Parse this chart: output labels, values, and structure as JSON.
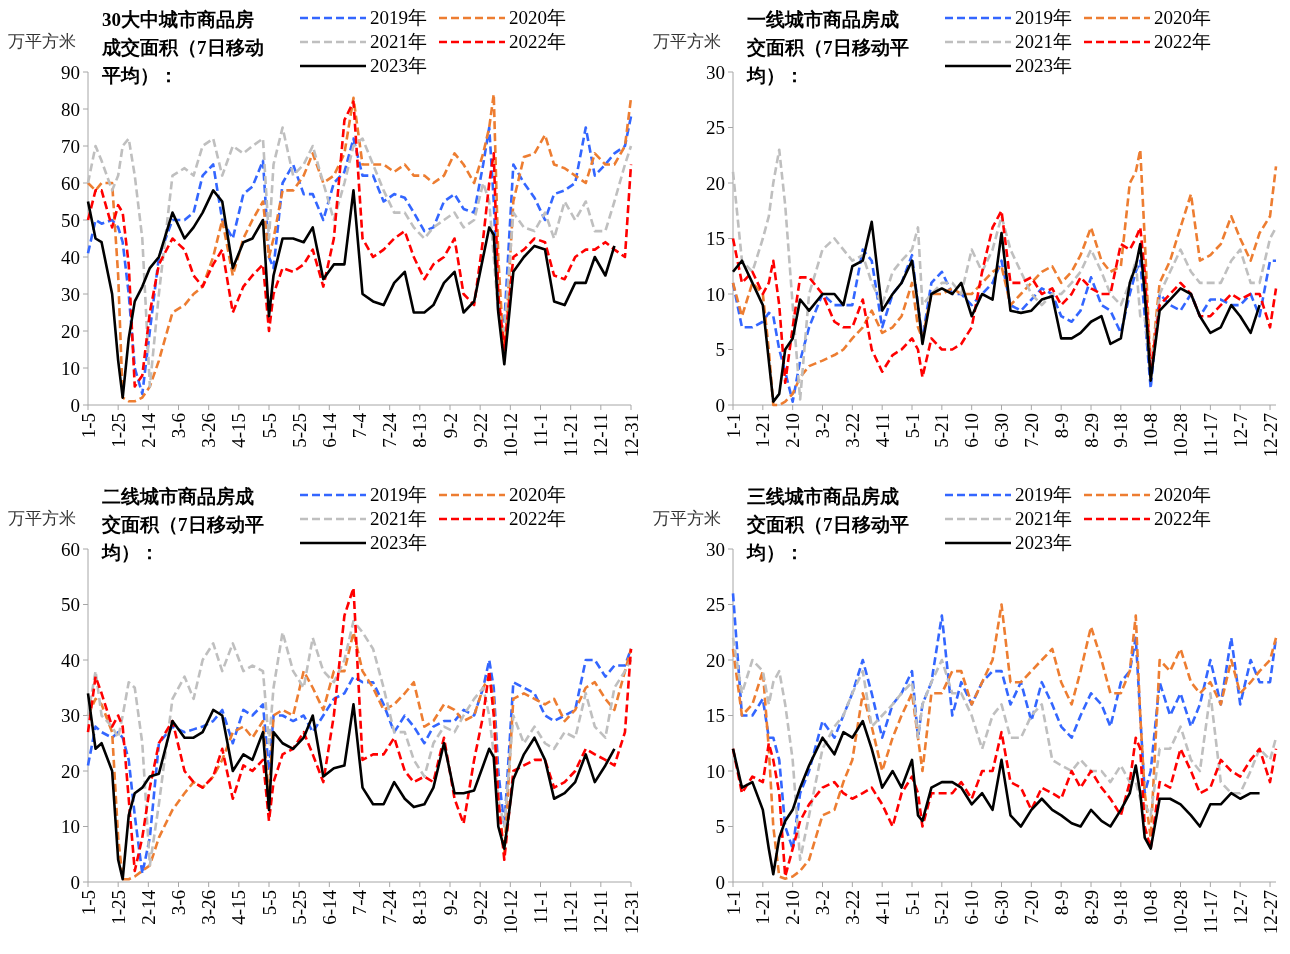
{
  "chart_data": [
    {
      "type": "line",
      "title": "30大中城市商品房成交面积（7日移动平均）：",
      "ylabel": "万平方米",
      "legend": "top",
      "x": [
        "--01-05",
        "--01-10",
        "--01-14",
        "--01-21",
        "--01-25",
        "--01-28",
        "--02-01",
        "--02-05",
        "--02-10",
        "--02-15",
        "--02-21",
        "--03-02",
        "--03-10",
        "--03-16",
        "--03-22",
        "--03-29",
        "--04-04",
        "--04-11",
        "--04-18",
        "--04-24",
        "--05-01",
        "--05-05",
        "--05-08",
        "--05-14",
        "--05-21",
        "--05-28",
        "--06-03",
        "--06-10",
        "--06-17",
        "--06-24",
        "--06-30",
        "--07-06",
        "--07-13",
        "--07-20",
        "--07-27",
        "--08-03",
        "--08-09",
        "--08-16",
        "--08-22",
        "--08-29",
        "--09-05",
        "--09-11",
        "--09-18",
        "--09-24",
        "--09-28",
        "--10-01",
        "--10-04",
        "--10-08",
        "--10-14",
        "--10-21",
        "--10-28",
        "--11-04",
        "--11-10",
        "--11-17",
        "--11-24",
        "--12-01",
        "--12-07",
        "--12-14",
        "--12-20",
        "--12-27",
        "--12-31"
      ],
      "xlim": [
        "--01-05",
        "--12-31"
      ],
      "xticks": [
        {
          "value": "--01-05",
          "label": "1-5"
        },
        {
          "value": "--01-25",
          "label": "1-25"
        },
        {
          "value": "--02-14",
          "label": "2-14"
        },
        {
          "value": "--03-06",
          "label": "3-6"
        },
        {
          "value": "--03-26",
          "label": "3-26"
        },
        {
          "value": "--04-15",
          "label": "4-15"
        },
        {
          "value": "--05-05",
          "label": "5-5"
        },
        {
          "value": "--05-25",
          "label": "5-25"
        },
        {
          "value": "--06-14",
          "label": "6-14"
        },
        {
          "value": "--07-04",
          "label": "7-4"
        },
        {
          "value": "--07-24",
          "label": "7-24"
        },
        {
          "value": "--08-13",
          "label": "8-13"
        },
        {
          "value": "--09-02",
          "label": "9-2"
        },
        {
          "value": "--09-22",
          "label": "9-22"
        },
        {
          "value": "--10-12",
          "label": "10-12"
        },
        {
          "value": "--11-01",
          "label": "11-1"
        },
        {
          "value": "--11-21",
          "label": "11-21"
        },
        {
          "value": "--12-11",
          "label": "12-11"
        },
        {
          "value": "--12-31",
          "label": "12-31"
        }
      ],
      "ylim": [
        0,
        90
      ],
      "yticks": [
        0,
        10,
        20,
        30,
        40,
        50,
        60,
        70,
        80,
        90
      ],
      "series": [
        {
          "name": "2019年",
          "color": "#3366ff",
          "line_style": "dashed",
          "values": [
            41,
            50,
            49,
            50,
            48,
            44,
            30,
            10,
            3,
            20,
            40,
            50,
            50,
            52,
            62,
            65,
            50,
            45,
            57,
            59,
            66,
            40,
            37,
            60,
            65,
            57,
            57,
            50,
            60,
            63,
            72,
            62,
            62,
            55,
            57,
            56,
            52,
            47,
            48,
            55,
            57,
            53,
            52,
            65,
            75,
            55,
            25,
            22,
            65,
            60,
            56,
            50,
            57,
            58,
            60,
            75,
            62,
            65,
            68,
            70,
            78
          ]
        },
        {
          "name": "2020年",
          "color": "#ed7d31",
          "line_style": "dashed",
          "values": [
            60,
            58,
            60,
            60,
            35,
            2,
            1,
            1,
            2,
            5,
            12,
            25,
            27,
            30,
            32,
            40,
            50,
            35,
            45,
            50,
            55,
            40,
            45,
            58,
            58,
            62,
            68,
            60,
            62,
            68,
            83,
            65,
            65,
            65,
            63,
            65,
            62,
            62,
            60,
            62,
            68,
            65,
            60,
            68,
            75,
            84,
            40,
            12,
            55,
            67,
            68,
            73,
            65,
            64,
            62,
            60,
            68,
            65,
            65,
            70,
            83
          ]
        },
        {
          "name": "2021年",
          "color": "#bfbfbf",
          "line_style": "dashed",
          "values": [
            60,
            70,
            66,
            58,
            62,
            70,
            72,
            62,
            45,
            5,
            30,
            62,
            64,
            62,
            70,
            72,
            62,
            70,
            68,
            70,
            72,
            45,
            65,
            75,
            62,
            65,
            70,
            60,
            50,
            60,
            70,
            72,
            65,
            58,
            52,
            52,
            48,
            45,
            48,
            50,
            52,
            48,
            50,
            60,
            55,
            40,
            25,
            20,
            52,
            48,
            47,
            52,
            45,
            55,
            50,
            55,
            47,
            47,
            55,
            65,
            70
          ]
        },
        {
          "name": "2022年",
          "color": "#ff0000",
          "line_style": "dashed",
          "values": [
            50,
            58,
            58,
            48,
            54,
            52,
            38,
            5,
            8,
            25,
            38,
            45,
            42,
            35,
            32,
            38,
            42,
            25,
            32,
            35,
            38,
            20,
            30,
            37,
            36,
            38,
            42,
            32,
            45,
            77,
            82,
            45,
            40,
            42,
            45,
            47,
            40,
            34,
            38,
            40,
            45,
            30,
            27,
            45,
            60,
            68,
            30,
            15,
            40,
            42,
            45,
            44,
            35,
            34,
            40,
            42,
            42,
            44,
            42,
            40,
            65
          ]
        },
        {
          "name": "2023年",
          "color": "#000000",
          "line_style": "solid",
          "values": [
            55,
            45,
            44,
            30,
            12,
            2,
            18,
            28,
            32,
            37,
            40,
            52,
            45,
            48,
            52,
            58,
            55,
            37,
            44,
            45,
            50,
            24,
            35,
            45,
            45,
            44,
            48,
            34,
            38,
            38,
            58,
            30,
            28,
            27,
            33,
            36,
            25,
            25,
            27,
            33,
            36,
            25,
            28,
            40,
            48,
            46,
            25,
            11,
            36,
            40,
            43,
            42,
            28,
            27,
            33,
            33,
            40,
            35,
            43,
            null,
            null
          ]
        }
      ]
    },
    {
      "type": "line",
      "title": "一线城市商品房成交面积（7日移动平均）：",
      "ylabel": "万平方米",
      "legend": "top",
      "x": [
        "--01-01",
        "--01-07",
        "--01-14",
        "--01-21",
        "--01-25",
        "--01-28",
        "--02-01",
        "--02-05",
        "--02-10",
        "--02-15",
        "--02-21",
        "--03-02",
        "--03-10",
        "--03-16",
        "--03-22",
        "--03-29",
        "--04-04",
        "--04-11",
        "--04-18",
        "--04-24",
        "--05-01",
        "--05-05",
        "--05-08",
        "--05-14",
        "--05-21",
        "--05-28",
        "--06-03",
        "--06-10",
        "--06-17",
        "--06-24",
        "--06-30",
        "--07-06",
        "--07-13",
        "--07-20",
        "--07-27",
        "--08-03",
        "--08-09",
        "--08-16",
        "--08-22",
        "--08-29",
        "--09-05",
        "--09-11",
        "--09-18",
        "--09-24",
        "--09-28",
        "--10-01",
        "--10-04",
        "--10-08",
        "--10-14",
        "--10-21",
        "--10-28",
        "--11-04",
        "--11-10",
        "--11-17",
        "--11-24",
        "--12-01",
        "--12-07",
        "--12-14",
        "--12-20",
        "--12-27",
        "--12-31"
      ],
      "xlim": [
        "--01-01",
        "--12-31"
      ],
      "xticks": [
        {
          "value": "--01-01",
          "label": "1-1"
        },
        {
          "value": "--01-21",
          "label": "1-21"
        },
        {
          "value": "--02-10",
          "label": "2-10"
        },
        {
          "value": "--03-02",
          "label": "3-2"
        },
        {
          "value": "--03-22",
          "label": "3-22"
        },
        {
          "value": "--04-11",
          "label": "4-11"
        },
        {
          "value": "--05-01",
          "label": "5-1"
        },
        {
          "value": "--05-21",
          "label": "5-21"
        },
        {
          "value": "--06-10",
          "label": "6-10"
        },
        {
          "value": "--06-30",
          "label": "6-30"
        },
        {
          "value": "--07-20",
          "label": "7-20"
        },
        {
          "value": "--08-09",
          "label": "8-9"
        },
        {
          "value": "--08-29",
          "label": "8-29"
        },
        {
          "value": "--09-18",
          "label": "9-18"
        },
        {
          "value": "--10-08",
          "label": "10-8"
        },
        {
          "value": "--10-28",
          "label": "10-28"
        },
        {
          "value": "--11-17",
          "label": "11-17"
        },
        {
          "value": "--12-07",
          "label": "12-7"
        },
        {
          "value": "--12-27",
          "label": "12-27"
        }
      ],
      "ylim": [
        0,
        30
      ],
      "yticks": [
        0,
        5,
        10,
        15,
        20,
        25,
        30
      ],
      "series": [
        {
          "name": "2019年",
          "color": "#3366ff",
          "line_style": "dashed",
          "values": [
            11,
            7,
            7,
            7.5,
            8.3,
            8,
            5,
            3,
            0.3,
            4,
            7,
            10,
            9,
            9,
            9,
            14,
            13,
            7,
            10,
            11,
            13.5,
            9,
            6,
            11,
            12,
            10,
            10,
            9,
            10,
            11,
            13,
            9,
            8.5,
            9.5,
            10.5,
            10,
            8,
            7.5,
            8.5,
            11.5,
            9,
            8.5,
            6.5,
            10,
            12,
            13,
            8,
            1.5,
            10,
            9,
            8.5,
            10,
            8,
            9.5,
            9.5,
            9,
            9,
            10,
            8,
            13,
            13
          ]
        },
        {
          "name": "2020年",
          "color": "#ed7d31",
          "line_style": "dashed",
          "values": [
            11,
            8,
            11,
            10,
            5,
            0,
            0,
            0.3,
            1,
            2.5,
            3.5,
            4,
            4.5,
            5,
            6,
            7,
            8.5,
            6.5,
            7,
            8,
            11,
            7,
            6,
            10,
            10,
            10.5,
            10,
            10,
            11,
            12,
            12.5,
            9,
            10,
            11,
            12,
            12.5,
            11,
            12,
            13.5,
            16,
            13,
            12,
            12.5,
            20,
            21,
            23,
            15,
            3,
            11,
            13,
            16,
            19,
            13,
            13.5,
            14.5,
            17,
            15,
            13,
            15.5,
            17,
            21.5
          ]
        },
        {
          "name": "2021年",
          "color": "#bfbfbf",
          "line_style": "dashed",
          "values": [
            21,
            13,
            12,
            15,
            17,
            20,
            23,
            18,
            9,
            0.5,
            10,
            14,
            15,
            14,
            13,
            13.5,
            11,
            9,
            12,
            13,
            14,
            16,
            9,
            10,
            11,
            11,
            10,
            14,
            12,
            14,
            17,
            14,
            12,
            10,
            9,
            10,
            10,
            11,
            12,
            14,
            12,
            10,
            9,
            11,
            13,
            8,
            8,
            3,
            10,
            12,
            14,
            12,
            11,
            11,
            11,
            13,
            14,
            11,
            11,
            15,
            16
          ]
        },
        {
          "name": "2022年",
          "color": "#ff0000",
          "line_style": "dashed",
          "values": [
            15,
            11,
            12,
            10,
            11,
            13,
            9,
            2,
            7,
            11.5,
            11.5,
            10,
            7.5,
            7,
            7,
            9.5,
            5,
            3,
            4.5,
            5,
            6,
            5,
            2.5,
            6,
            5,
            5,
            5.5,
            7,
            12,
            16,
            17.5,
            11,
            11,
            11.5,
            10,
            10.5,
            9,
            10,
            11.5,
            10.5,
            10,
            10,
            14.5,
            14,
            15,
            16,
            12,
            3,
            9,
            10,
            11,
            10,
            8,
            8,
            9,
            10,
            9.5,
            10,
            10,
            7,
            10.5
          ]
        },
        {
          "name": "2023年",
          "color": "#000000",
          "line_style": "solid",
          "values": [
            12,
            13,
            11,
            9,
            4,
            0.3,
            1,
            5,
            6,
            9.5,
            8.5,
            10,
            10,
            9,
            12.5,
            13,
            16.5,
            8.5,
            10,
            11,
            13,
            9,
            5.5,
            10,
            10.5,
            10,
            11,
            8,
            10,
            9.5,
            15.5,
            8.5,
            8.3,
            8.5,
            9.5,
            9.8,
            6,
            6,
            6.5,
            7.5,
            8,
            5.5,
            6,
            11,
            12.5,
            14.5,
            10,
            2.2,
            8.5,
            9.5,
            10.5,
            10,
            8,
            6.5,
            7,
            9,
            8,
            6.5,
            9,
            null,
            null
          ]
        }
      ]
    },
    {
      "type": "line",
      "title": "二线城市商品房成交面积（7日移动平均）：",
      "ylabel": "万平方米",
      "legend": "top",
      "x": [
        "--01-05",
        "--01-10",
        "--01-14",
        "--01-21",
        "--01-25",
        "--01-28",
        "--02-01",
        "--02-05",
        "--02-10",
        "--02-15",
        "--02-21",
        "--03-02",
        "--03-10",
        "--03-16",
        "--03-22",
        "--03-29",
        "--04-04",
        "--04-11",
        "--04-18",
        "--04-24",
        "--05-01",
        "--05-05",
        "--05-08",
        "--05-14",
        "--05-21",
        "--05-28",
        "--06-03",
        "--06-10",
        "--06-17",
        "--06-24",
        "--06-30",
        "--07-06",
        "--07-13",
        "--07-20",
        "--07-27",
        "--08-03",
        "--08-09",
        "--08-16",
        "--08-22",
        "--08-29",
        "--09-05",
        "--09-11",
        "--09-18",
        "--09-24",
        "--09-28",
        "--10-01",
        "--10-04",
        "--10-08",
        "--10-14",
        "--10-21",
        "--10-28",
        "--11-04",
        "--11-10",
        "--11-17",
        "--11-24",
        "--12-01",
        "--12-07",
        "--12-14",
        "--12-20",
        "--12-27",
        "--12-31"
      ],
      "xlim": [
        "--01-05",
        "--12-31"
      ],
      "xticks": [
        {
          "value": "--01-05",
          "label": "1-5"
        },
        {
          "value": "--01-25",
          "label": "1-25"
        },
        {
          "value": "--02-14",
          "label": "2-14"
        },
        {
          "value": "--03-06",
          "label": "3-6"
        },
        {
          "value": "--03-26",
          "label": "3-26"
        },
        {
          "value": "--04-15",
          "label": "4-15"
        },
        {
          "value": "--05-05",
          "label": "5-5"
        },
        {
          "value": "--05-25",
          "label": "5-25"
        },
        {
          "value": "--06-14",
          "label": "6-14"
        },
        {
          "value": "--07-04",
          "label": "7-4"
        },
        {
          "value": "--07-24",
          "label": "7-24"
        },
        {
          "value": "--08-13",
          "label": "8-13"
        },
        {
          "value": "--09-02",
          "label": "9-2"
        },
        {
          "value": "--09-22",
          "label": "9-22"
        },
        {
          "value": "--10-12",
          "label": "10-12"
        },
        {
          "value": "--11-01",
          "label": "11-1"
        },
        {
          "value": "--11-21",
          "label": "11-21"
        },
        {
          "value": "--12-11",
          "label": "12-11"
        },
        {
          "value": "--12-31",
          "label": "12-31"
        }
      ],
      "ylim": [
        0,
        60
      ],
      "yticks": [
        0,
        10,
        20,
        30,
        40,
        50,
        60
      ],
      "series": [
        {
          "name": "2019年",
          "color": "#3366ff",
          "line_style": "dashed",
          "values": [
            21,
            28,
            27,
            26,
            27,
            26,
            22,
            12,
            1.5,
            8,
            25,
            28,
            27,
            27.5,
            28,
            29,
            31,
            25,
            31,
            30,
            32,
            20,
            30,
            30,
            29,
            30,
            27,
            30,
            33,
            34,
            37,
            36,
            36,
            32,
            27,
            30,
            28,
            25,
            28,
            29,
            29,
            31,
            30,
            35,
            40,
            35,
            20,
            10,
            36,
            35,
            34,
            30,
            29,
            30,
            31,
            40,
            40,
            37,
            39,
            39,
            42
          ]
        },
        {
          "name": "2020年",
          "color": "#ed7d31",
          "line_style": "dashed",
          "values": [
            30,
            33,
            32,
            27,
            8,
            0.5,
            0.5,
            1,
            2,
            3,
            8,
            13,
            16,
            18,
            17,
            19,
            22,
            27,
            28,
            26,
            29,
            15,
            30,
            31,
            30,
            38,
            35,
            31,
            38,
            38,
            45,
            38,
            35,
            31,
            32,
            34,
            36,
            28,
            29,
            32,
            31,
            29,
            30,
            35,
            37,
            33,
            15,
            5,
            33,
            34,
            33,
            32,
            33,
            29,
            31,
            35,
            36,
            33,
            31,
            38,
            42
          ]
        },
        {
          "name": "2021年",
          "color": "#bfbfbf",
          "line_style": "dashed",
          "values": [
            30,
            38,
            30,
            28,
            26,
            30,
            36,
            35,
            25,
            3,
            14,
            33,
            37,
            33,
            40,
            43,
            38,
            43,
            38,
            39,
            38,
            25,
            35,
            45,
            38,
            35,
            44,
            38,
            36,
            40,
            47,
            45,
            42,
            35,
            27,
            27,
            22,
            19,
            25,
            28,
            27,
            30,
            33,
            35,
            30,
            23,
            15,
            10,
            30,
            25,
            28,
            25,
            24,
            27,
            26,
            34,
            28,
            26,
            35,
            38,
            40
          ]
        },
        {
          "name": "2022年",
          "color": "#ff0000",
          "line_style": "dashed",
          "values": [
            27,
            37,
            34,
            28,
            30,
            28,
            15,
            2,
            8,
            17,
            25,
            29,
            20,
            18,
            17,
            19,
            24,
            15,
            21,
            20,
            22,
            11,
            18,
            23,
            24,
            27,
            23,
            18,
            30,
            48,
            53,
            22,
            23,
            23,
            26,
            20,
            18,
            19,
            18,
            26,
            15,
            10.5,
            22,
            30,
            38,
            30,
            15,
            4,
            20,
            21,
            22,
            22,
            17,
            18,
            20,
            24,
            23,
            22,
            21,
            27,
            42
          ]
        },
        {
          "name": "2023年",
          "color": "#000000",
          "line_style": "solid",
          "values": [
            34,
            24,
            25,
            20,
            4,
            0.5,
            12,
            16,
            17,
            19,
            19.5,
            29,
            26,
            26,
            27,
            31,
            30,
            20,
            23,
            22,
            27,
            13,
            27,
            25,
            24,
            26,
            30,
            19,
            20.5,
            21,
            32,
            17,
            14,
            14,
            18,
            15,
            13.5,
            14,
            17,
            25,
            16,
            16,
            16.5,
            21,
            24,
            22.5,
            10,
            6,
            18.5,
            23,
            26,
            22,
            15,
            16,
            18,
            23,
            18,
            21,
            24,
            null,
            null
          ]
        }
      ]
    },
    {
      "type": "line",
      "title": "三线城市商品房成交面积（7日移动平均）：",
      "ylabel": "万平方米",
      "legend": "top",
      "x": [
        "--01-01",
        "--01-07",
        "--01-14",
        "--01-21",
        "--01-25",
        "--01-28",
        "--02-01",
        "--02-05",
        "--02-10",
        "--02-15",
        "--02-21",
        "--03-02",
        "--03-10",
        "--03-16",
        "--03-22",
        "--03-29",
        "--04-04",
        "--04-11",
        "--04-18",
        "--04-24",
        "--05-01",
        "--05-05",
        "--05-08",
        "--05-14",
        "--05-21",
        "--05-28",
        "--06-03",
        "--06-10",
        "--06-17",
        "--06-24",
        "--06-30",
        "--07-06",
        "--07-13",
        "--07-20",
        "--07-27",
        "--08-03",
        "--08-09",
        "--08-16",
        "--08-22",
        "--08-29",
        "--09-05",
        "--09-11",
        "--09-18",
        "--09-24",
        "--09-28",
        "--10-01",
        "--10-04",
        "--10-08",
        "--10-14",
        "--10-21",
        "--10-28",
        "--11-04",
        "--11-10",
        "--11-17",
        "--11-24",
        "--12-01",
        "--12-07",
        "--12-14",
        "--12-20",
        "--12-27",
        "--12-31"
      ],
      "xlim": [
        "--01-01",
        "--12-31"
      ],
      "xticks": [
        {
          "value": "--01-01",
          "label": "1-1"
        },
        {
          "value": "--01-21",
          "label": "1-21"
        },
        {
          "value": "--02-10",
          "label": "2-10"
        },
        {
          "value": "--03-02",
          "label": "3-2"
        },
        {
          "value": "--03-22",
          "label": "3-22"
        },
        {
          "value": "--04-11",
          "label": "4-11"
        },
        {
          "value": "--05-01",
          "label": "5-1"
        },
        {
          "value": "--05-21",
          "label": "5-21"
        },
        {
          "value": "--06-10",
          "label": "6-10"
        },
        {
          "value": "--06-30",
          "label": "6-30"
        },
        {
          "value": "--07-20",
          "label": "7-20"
        },
        {
          "value": "--08-09",
          "label": "8-9"
        },
        {
          "value": "--08-29",
          "label": "8-29"
        },
        {
          "value": "--09-18",
          "label": "9-18"
        },
        {
          "value": "--10-08",
          "label": "10-8"
        },
        {
          "value": "--10-28",
          "label": "10-28"
        },
        {
          "value": "--11-17",
          "label": "11-17"
        },
        {
          "value": "--12-07",
          "label": "12-7"
        },
        {
          "value": "--12-27",
          "label": "12-27"
        }
      ],
      "ylim": [
        0,
        30
      ],
      "yticks": [
        0,
        5,
        10,
        15,
        20,
        25,
        30
      ],
      "series": [
        {
          "name": "2019年",
          "color": "#3366ff",
          "line_style": "dashed",
          "values": [
            26,
            15,
            15,
            16.5,
            13,
            13,
            11,
            5,
            3,
            8,
            10,
            14.5,
            13,
            15,
            17,
            20,
            17,
            13,
            16,
            17,
            19,
            13,
            16,
            18,
            24,
            15,
            18,
            16,
            18,
            19,
            19,
            16,
            18,
            14.5,
            18,
            16,
            14,
            13,
            15,
            17,
            16,
            14,
            18,
            19,
            22,
            15,
            8,
            10,
            18,
            15,
            17,
            14,
            16,
            20,
            16,
            22,
            16,
            20,
            18,
            18,
            22
          ]
        },
        {
          "name": "2020年",
          "color": "#ed7d31",
          "line_style": "dashed",
          "values": [
            21,
            15,
            16,
            19,
            12,
            5,
            0.5,
            0.3,
            0.5,
            1,
            2,
            6,
            6.5,
            9,
            11,
            17,
            14,
            10,
            13,
            15,
            17,
            13,
            10,
            17,
            17,
            19,
            19,
            16,
            18,
            20,
            25,
            18,
            18,
            19,
            20,
            21,
            18,
            16,
            19,
            23,
            20,
            17,
            17,
            19,
            24,
            15,
            8,
            4,
            20,
            19,
            21,
            18,
            17,
            18,
            16,
            20,
            17,
            18,
            19,
            20,
            22
          ]
        },
        {
          "name": "2021年",
          "color": "#bfbfbf",
          "line_style": "dashed",
          "values": [
            22,
            17,
            20,
            19,
            16,
            18,
            19,
            16,
            11,
            2,
            6,
            12,
            14,
            15,
            17,
            19,
            14,
            15,
            16,
            17,
            18,
            13,
            16,
            18,
            20,
            17,
            17,
            15,
            12,
            15,
            16,
            13,
            13,
            15,
            16,
            11,
            10.5,
            10,
            11,
            10,
            10,
            9,
            10.5,
            9,
            9,
            7.5,
            7,
            6,
            12,
            12,
            14,
            11,
            10,
            17,
            9,
            8,
            8,
            10,
            12,
            11,
            13
          ]
        },
        {
          "name": "2022年",
          "color": "#ff0000",
          "line_style": "dashed",
          "values": [
            12,
            8,
            9.5,
            9,
            12.5,
            11,
            8,
            0.5,
            3,
            5.5,
            7,
            8.5,
            9,
            8,
            7.5,
            8,
            8.5,
            7,
            5,
            8,
            9.5,
            8,
            5,
            8,
            8,
            8,
            9,
            7.5,
            10,
            10,
            13.5,
            9,
            8.5,
            6.5,
            8.5,
            8,
            7.5,
            10,
            8.5,
            10,
            8.5,
            7.5,
            6,
            9,
            13,
            12,
            5,
            3,
            9,
            8.5,
            12,
            10,
            8,
            8.5,
            11,
            10,
            9.5,
            11,
            12,
            9,
            12
          ]
        },
        {
          "name": "2023年",
          "color": "#000000",
          "line_style": "solid",
          "values": [
            12,
            8.5,
            9,
            6.5,
            3,
            0.7,
            4,
            5.5,
            6.5,
            8.5,
            10.5,
            13,
            11.5,
            13.5,
            13,
            14.5,
            12,
            8.5,
            10,
            8.5,
            11,
            6,
            5.5,
            8.5,
            9,
            9,
            8.5,
            7,
            8,
            6.5,
            11,
            6,
            5,
            6.5,
            7.5,
            6.5,
            6,
            5.3,
            5,
            6.5,
            5.5,
            5,
            6.5,
            8,
            10.5,
            8,
            4,
            3,
            7.5,
            7.5,
            7,
            6,
            5,
            7,
            7,
            8,
            7.5,
            8,
            8,
            null,
            null
          ]
        }
      ]
    }
  ]
}
